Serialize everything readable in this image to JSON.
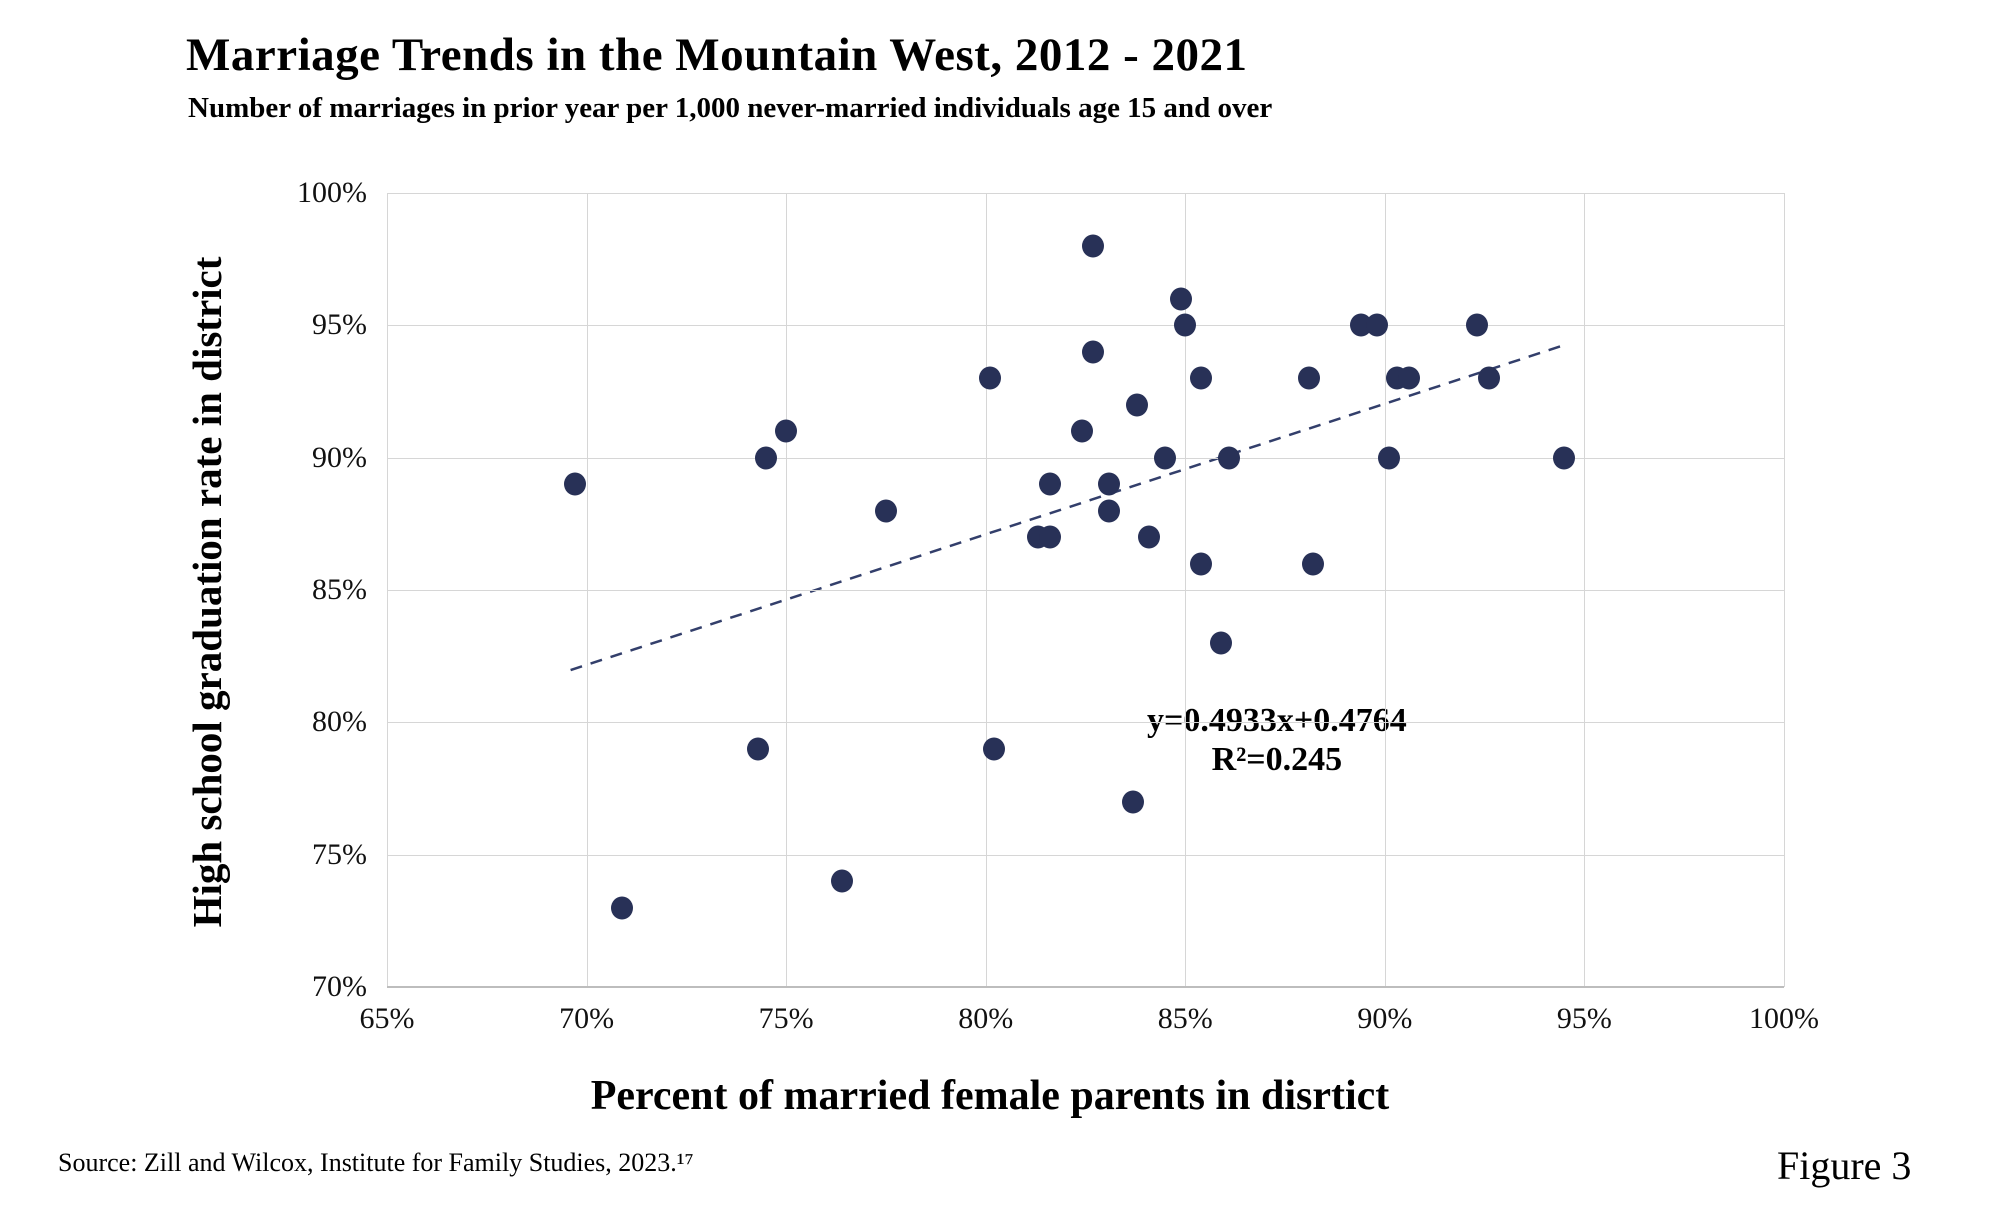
{
  "header": {
    "title": "Marriage Trends in the Mountain West, 2012 - 2021",
    "subtitle": "Number of marriages in prior year per 1,000 never-married individuals age 15 and over"
  },
  "footer": {
    "source": "Source: Zill and Wilcox, Institute for Family Studies, 2023.¹⁷",
    "figure_label": "Figure 3"
  },
  "chart_data": {
    "type": "scatter",
    "title": "Marriage Trends in the Mountain West, 2012 - 2021",
    "subtitle": "Number of marriages in prior year per 1,000 never-married individuals age 15 and over",
    "xlabel": "Percent of married female parents in disrtict",
    "ylabel": "High school graduation rate in district",
    "xlim": [
      65,
      100
    ],
    "ylim": [
      70,
      100
    ],
    "x_ticks": [
      65,
      70,
      75,
      80,
      85,
      90,
      95,
      100
    ],
    "y_ticks": [
      70,
      75,
      80,
      85,
      90,
      95,
      100
    ],
    "tick_suffix": "%",
    "grid": true,
    "legend": "none",
    "points": [
      [
        69.7,
        89
      ],
      [
        70.9,
        73
      ],
      [
        74.3,
        79
      ],
      [
        74.5,
        90
      ],
      [
        75.0,
        91
      ],
      [
        76.4,
        74
      ],
      [
        77.5,
        88
      ],
      [
        80.1,
        93
      ],
      [
        80.2,
        79
      ],
      [
        81.3,
        87
      ],
      [
        81.6,
        87
      ],
      [
        81.6,
        89
      ],
      [
        82.4,
        91
      ],
      [
        82.7,
        94
      ],
      [
        82.7,
        98
      ],
      [
        83.1,
        88
      ],
      [
        83.1,
        89
      ],
      [
        83.7,
        77
      ],
      [
        83.8,
        92
      ],
      [
        84.1,
        87
      ],
      [
        84.5,
        90
      ],
      [
        84.9,
        96
      ],
      [
        85.0,
        95
      ],
      [
        85.4,
        86
      ],
      [
        85.4,
        93
      ],
      [
        85.9,
        83
      ],
      [
        86.1,
        90
      ],
      [
        88.1,
        93
      ],
      [
        88.2,
        86
      ],
      [
        89.4,
        95
      ],
      [
        89.8,
        95
      ],
      [
        90.1,
        90
      ],
      [
        90.3,
        93
      ],
      [
        90.6,
        93
      ],
      [
        92.3,
        95
      ],
      [
        92.6,
        93
      ],
      [
        94.5,
        90
      ]
    ],
    "trendline": {
      "equation": "y=0.4933x+0.4764",
      "r_squared": "R²=0.245",
      "slope": 0.4933,
      "intercept": 47.64,
      "x_start": 69.6,
      "x_end": 94.6,
      "style": "dashed"
    },
    "colors": {
      "dot": "#283157",
      "trend": "#333f6b",
      "grid": "#d6d6d6"
    }
  }
}
